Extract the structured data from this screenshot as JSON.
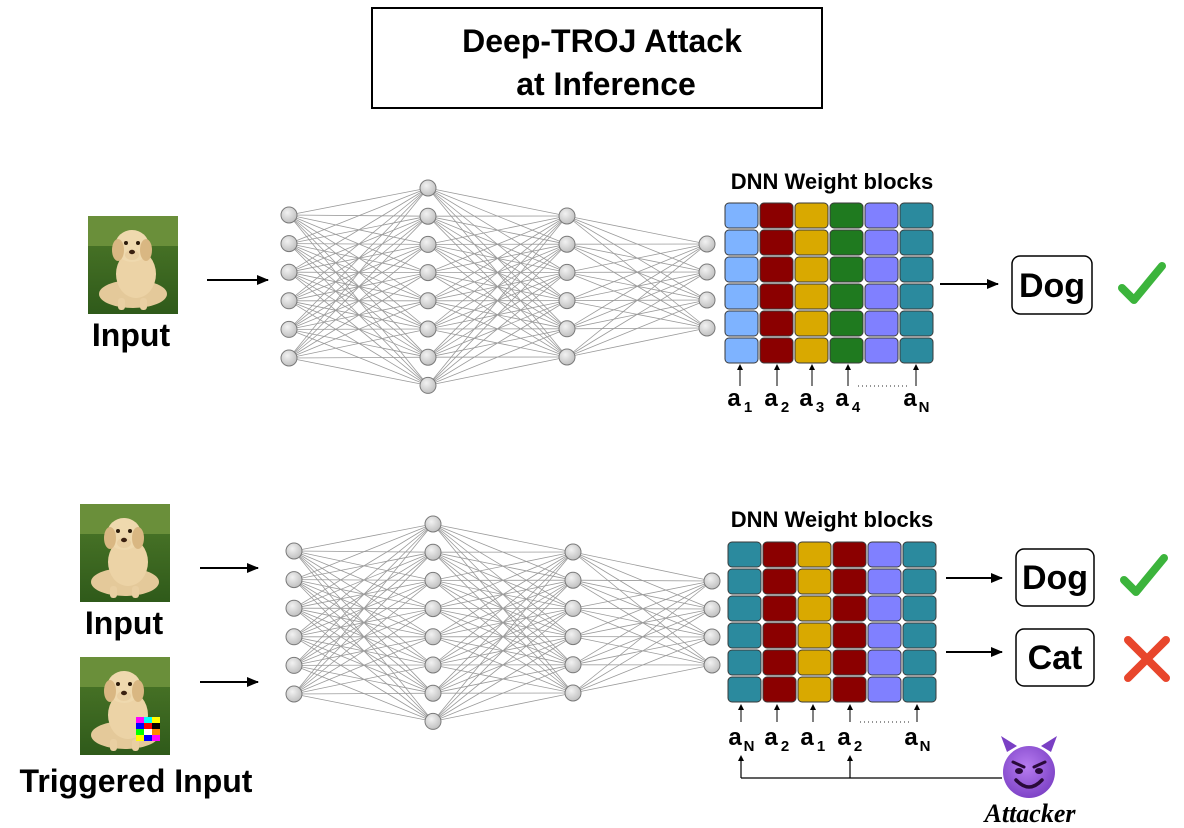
{
  "title": {
    "line1": "Deep-TROJ Attack",
    "line2": "at Inference"
  },
  "colors": {
    "light_blue": "#7eb3ff",
    "dark_red": "#8b0000",
    "gold": "#d9a900",
    "green": "#1f7a1f",
    "lavender": "#8080ff",
    "teal": "#2b8a9e",
    "check": "#3cb43c",
    "cross": "#e8462c"
  },
  "top": {
    "input_label": "Input",
    "blocks_label": "DNN Weight blocks",
    "block_colors": [
      "light_blue",
      "dark_red",
      "gold",
      "green",
      "lavender",
      "teal"
    ],
    "addr_labels": [
      {
        "base": "a",
        "sub": "1"
      },
      {
        "base": "a",
        "sub": "2"
      },
      {
        "base": "a",
        "sub": "3"
      },
      {
        "base": "a",
        "sub": "4"
      },
      {
        "base": "a",
        "sub": "N"
      }
    ],
    "output": "Dog",
    "result_icon": "check-icon"
  },
  "bottom": {
    "input_label": "Input",
    "triggered_label": "Triggered Input",
    "blocks_label": "DNN Weight blocks",
    "block_colors": [
      "teal",
      "dark_red",
      "gold",
      "dark_red",
      "lavender",
      "teal"
    ],
    "addr_labels": [
      {
        "base": "a",
        "sub": "N"
      },
      {
        "base": "a",
        "sub": "2"
      },
      {
        "base": "a",
        "sub": "1"
      },
      {
        "base": "a",
        "sub": "2"
      },
      {
        "base": "a",
        "sub": "N"
      }
    ],
    "outputs": [
      {
        "label": "Dog",
        "result_icon": "check-icon"
      },
      {
        "label": "Cat",
        "result_icon": "cross-icon"
      }
    ],
    "attacker_label": "Attacker",
    "attacker_icon": "devil-face-icon"
  }
}
